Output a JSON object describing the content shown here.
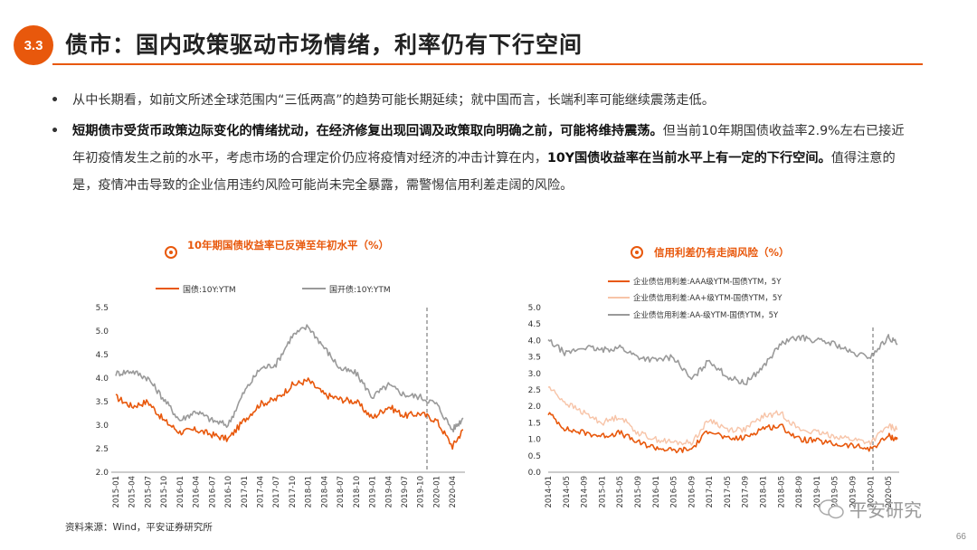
{
  "header": {
    "section_number": "3.3",
    "title": "债市：国内政策驱动市场情绪，利率仍有下行空间"
  },
  "bullets": [
    {
      "plain_1": "从中长期看，如前文所述全球范围内“三低两高”的趋势可能长期延续；就中国而言，长端利率可能继续震荡走低。"
    },
    {
      "bold_1": "短期债市受货币政策边际变化的情绪扰动，在经济修复出现回调及政策取向明确之前，可能将维持震荡。",
      "plain_1": "但当前10年期国债收益率2.9%左右已接近年初疫情发生之前的水平，考虑市场的合理定价仍应将疫情对经济的冲击计算在内，",
      "bold_2": "10Y国债收益率在当前水平上有一定的下行空间。",
      "plain_2": "值得注意的是，疫情冲击导致的企业信用违约风险可能尚未完全暴露，需警惕信用利差走阔的风险。"
    }
  ],
  "chart_left": {
    "title": "10年期国债收益率已反弹至年初水平（%）",
    "legend": [
      "国债:10Y:YTM",
      "国开债:10Y:YTM"
    ],
    "y_ticks": [
      "5.5",
      "5.0",
      "4.5",
      "4.0",
      "3.5",
      "3.0",
      "2.5",
      "2.0"
    ],
    "x_ticks": [
      "2015-01",
      "2015-04",
      "2015-07",
      "2015-10",
      "2016-01",
      "2016-04",
      "2016-07",
      "2016-10",
      "2017-01",
      "2017-04",
      "2017-07",
      "2017-10",
      "2018-01",
      "2018-04",
      "2018-07",
      "2018-10",
      "2019-01",
      "2019-04",
      "2019-07",
      "2019-10",
      "2020-01",
      "2020-04"
    ]
  },
  "chart_right": {
    "title": "信用利差仍有走阔风险（%）",
    "legend": [
      "企业债信用利差:AAA级YTM-国债YTM，5Y",
      "企业债信用利差:AA+级YTM-国债YTM，5Y",
      "企业债信用利差:AA-级YTM-国债YTM，5Y"
    ],
    "y_ticks": [
      "5.0",
      "4.5",
      "4.0",
      "3.5",
      "3.0",
      "2.5",
      "2.0",
      "1.5",
      "1.0",
      "0.5",
      "0.0"
    ],
    "x_ticks": [
      "2014-01",
      "2014-05",
      "2014-09",
      "2015-01",
      "2015-05",
      "2015-09",
      "2016-01",
      "2016-05",
      "2016-09",
      "2017-01",
      "2017-05",
      "2017-09",
      "2018-01",
      "2018-05",
      "2018-09",
      "2019-01",
      "2019-05",
      "2019-09",
      "2020-01",
      "2020-05"
    ]
  },
  "colors": {
    "accent": "#e8580c",
    "series_gray": "#9a9a9a",
    "series_light": "#f7c4a8"
  },
  "chart_data": [
    {
      "type": "line",
      "title": "10年期国债收益率已反弹至年初水平（%）",
      "ylim": [
        2.0,
        5.5
      ],
      "x_range": [
        "2015-01",
        "2020-06"
      ],
      "series": [
        {
          "name": "国债:10Y:YTM",
          "x": [
            "2015-01",
            "2015-04",
            "2015-07",
            "2015-10",
            "2016-01",
            "2016-04",
            "2016-07",
            "2016-10",
            "2017-01",
            "2017-04",
            "2017-07",
            "2017-10",
            "2018-01",
            "2018-04",
            "2018-07",
            "2018-10",
            "2019-01",
            "2019-04",
            "2019-07",
            "2019-10",
            "2020-01",
            "2020-04",
            "2020-06"
          ],
          "values": [
            3.6,
            3.4,
            3.5,
            3.1,
            2.85,
            2.9,
            2.8,
            2.7,
            3.1,
            3.45,
            3.55,
            3.85,
            3.95,
            3.65,
            3.55,
            3.5,
            3.15,
            3.4,
            3.2,
            3.25,
            3.1,
            2.55,
            2.9
          ]
        },
        {
          "name": "国开债:10Y:YTM",
          "x": [
            "2015-01",
            "2015-04",
            "2015-07",
            "2015-10",
            "2016-01",
            "2016-04",
            "2016-07",
            "2016-10",
            "2017-01",
            "2017-04",
            "2017-07",
            "2017-10",
            "2018-01",
            "2018-04",
            "2018-07",
            "2018-10",
            "2019-01",
            "2019-04",
            "2019-07",
            "2019-10",
            "2020-01",
            "2020-04",
            "2020-06"
          ],
          "values": [
            4.1,
            4.15,
            4.0,
            3.55,
            3.1,
            3.3,
            3.1,
            3.0,
            3.7,
            4.2,
            4.3,
            4.9,
            5.1,
            4.65,
            4.2,
            4.1,
            3.6,
            3.85,
            3.65,
            3.6,
            3.45,
            2.9,
            3.15
          ]
        }
      ]
    },
    {
      "type": "line",
      "title": "信用利差仍有走阔风险（%）",
      "ylim": [
        0.0,
        5.0
      ],
      "x_range": [
        "2014-01",
        "2020-07"
      ],
      "series": [
        {
          "name": "企业债信用利差:AAA级YTM-国债YTM，5Y",
          "x": [
            "2014-01",
            "2014-05",
            "2014-09",
            "2015-01",
            "2015-05",
            "2015-09",
            "2016-01",
            "2016-05",
            "2016-09",
            "2017-01",
            "2017-05",
            "2017-09",
            "2018-01",
            "2018-05",
            "2018-09",
            "2019-01",
            "2019-05",
            "2019-09",
            "2020-01",
            "2020-05",
            "2020-07"
          ],
          "values": [
            1.8,
            1.3,
            1.2,
            1.1,
            1.2,
            0.9,
            0.75,
            0.65,
            0.7,
            1.3,
            1.0,
            1.05,
            1.35,
            1.4,
            1.0,
            0.95,
            0.85,
            0.8,
            0.7,
            1.1,
            1.0
          ]
        },
        {
          "name": "企业债信用利差:AA+级YTM-国债YTM，5Y",
          "x": [
            "2014-01",
            "2014-05",
            "2014-09",
            "2015-01",
            "2015-05",
            "2015-09",
            "2016-01",
            "2016-05",
            "2016-09",
            "2017-01",
            "2017-05",
            "2017-09",
            "2018-01",
            "2018-05",
            "2018-09",
            "2019-01",
            "2019-05",
            "2019-09",
            "2020-01",
            "2020-05",
            "2020-07"
          ],
          "values": [
            2.6,
            2.1,
            1.8,
            1.5,
            1.7,
            1.2,
            1.0,
            0.9,
            0.9,
            1.6,
            1.3,
            1.3,
            1.7,
            1.8,
            1.3,
            1.2,
            1.1,
            1.0,
            0.9,
            1.4,
            1.3
          ]
        },
        {
          "name": "企业债信用利差:AA-级YTM-国债YTM，5Y",
          "x": [
            "2014-01",
            "2014-05",
            "2014-09",
            "2015-01",
            "2015-05",
            "2015-09",
            "2016-01",
            "2016-05",
            "2016-09",
            "2017-01",
            "2017-05",
            "2017-09",
            "2018-01",
            "2018-05",
            "2018-09",
            "2019-01",
            "2019-05",
            "2019-09",
            "2020-01",
            "2020-05",
            "2020-07"
          ],
          "values": [
            4.0,
            3.6,
            3.8,
            3.7,
            3.8,
            3.5,
            3.4,
            3.5,
            2.8,
            3.4,
            2.9,
            2.7,
            3.2,
            3.9,
            4.1,
            4.0,
            3.9,
            3.6,
            3.5,
            4.1,
            3.9
          ]
        }
      ]
    }
  ],
  "footer": {
    "source": "资料来源：Wind，平安证券研究所",
    "page": "66",
    "watermark": "平安研究"
  }
}
